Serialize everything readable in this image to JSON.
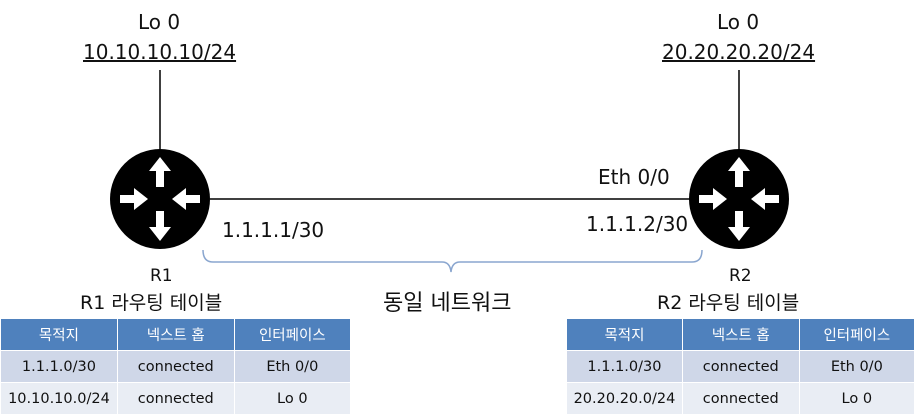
{
  "r1": {
    "loopback": {
      "name": "Lo 0",
      "ip": "10.10.10.10/24"
    },
    "link_ip": "1.1.1.1/30",
    "name": "R1",
    "table_title": "R1 라우팅 테이블",
    "table": {
      "headers": [
        "목적지",
        "넥스트 홉",
        "인터페이스"
      ],
      "rows": [
        [
          "1.1.1.0/30",
          "connected",
          "Eth 0/0"
        ],
        [
          "10.10.10.0/24",
          "connected",
          "Lo 0"
        ]
      ]
    }
  },
  "r2": {
    "loopback": {
      "name": "Lo 0",
      "ip": "20.20.20.20/24"
    },
    "interface": "Eth 0/0",
    "link_ip": "1.1.1.2/30",
    "name": "R2",
    "table_title": "R2 라우팅 테이블",
    "table": {
      "headers": [
        "목적지",
        "넥스트 홉",
        "인터페이스"
      ],
      "rows": [
        [
          "1.1.1.0/30",
          "connected",
          "Eth 0/0"
        ],
        [
          "20.20.20.0/24",
          "connected",
          "Lo 0"
        ]
      ]
    }
  },
  "network_label": "동일 네트워크",
  "colors": {
    "router": "#000000",
    "table_header": "#4f81bd",
    "row_dark": "#cfd7e8",
    "row_light": "#e9edf4",
    "brace": "#8aa6cf"
  },
  "icons": {
    "router": "router-arrows-icon"
  }
}
